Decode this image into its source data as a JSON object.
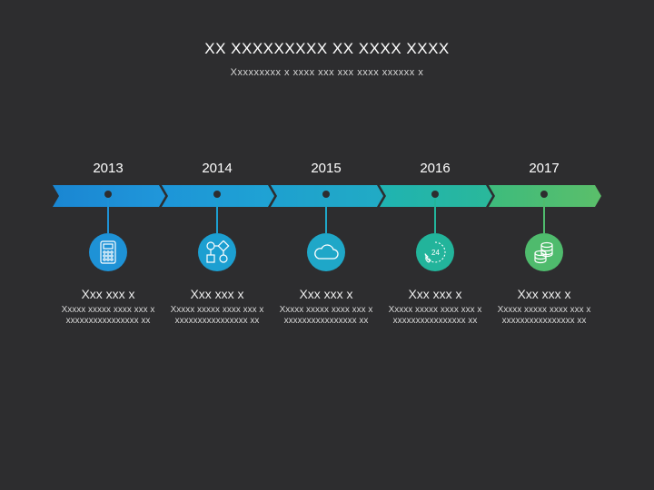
{
  "header": {
    "title": "XX  XXXXXXXXX XX XXXX XXXX",
    "subtitle": "Xxxxxxxxx x xxxx xxx xxx xxxx xxxxxx x"
  },
  "timeline": [
    {
      "year": "2013",
      "heading": "Xxx xxx x",
      "text": "Xxxxx xxxxx xxxx xxx xxxxxxxxxxxxxxxxx xx",
      "icon": "calculator-icon",
      "color": "#1e92d6"
    },
    {
      "year": "2014",
      "heading": "Xxx xxx x",
      "text": "Xxxxx xxxxx xxxx xxx xxxxxxxxxxxxxxxxx xx",
      "icon": "flowchart-icon",
      "color": "#1c9fd1"
    },
    {
      "year": "2015",
      "heading": "Xxx xxx x",
      "text": "Xxxxx xxxxx xxxx xxx xxxxxxxxxxxxxxxxx xx",
      "icon": "cloud-icon",
      "color": "#1fa7c8"
    },
    {
      "year": "2016",
      "heading": "Xxx xxx x",
      "text": "Xxxxx xxxxx xxxx xxx xxxxxxxxxxxxxxxxx xx",
      "icon": "24-hour-phone-icon",
      "color": "#22b49b"
    },
    {
      "year": "2017",
      "heading": "Xxx xxx x",
      "text": "Xxxxx xxxxx xxxx xxx xxxxxxxxxxxxxxxxx xx",
      "icon": "coins-icon",
      "color": "#4fbb6d"
    }
  ]
}
